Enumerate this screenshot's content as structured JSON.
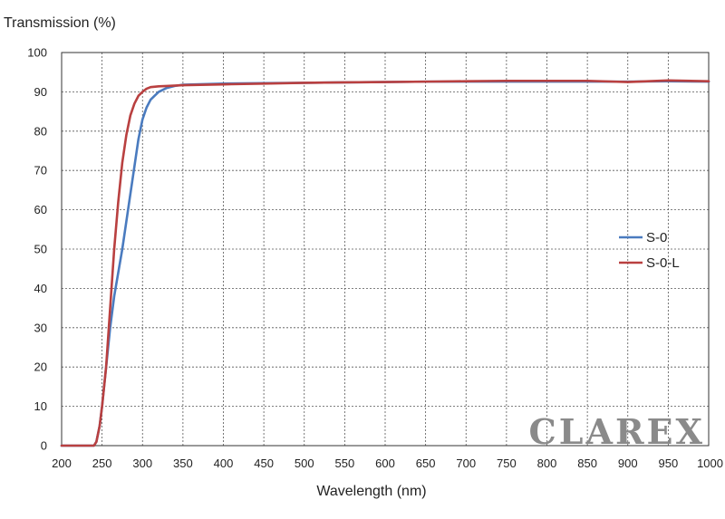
{
  "chart_data": {
    "type": "line",
    "ylabel": "Transmission (%)",
    "xlabel": "Wavelength (nm)",
    "xlim": [
      200,
      1000
    ],
    "ylim": [
      0,
      100
    ],
    "xticks": [
      200,
      250,
      300,
      350,
      400,
      450,
      500,
      550,
      600,
      650,
      700,
      750,
      800,
      850,
      900,
      950,
      1000
    ],
    "yticks": [
      0,
      10,
      20,
      30,
      40,
      50,
      60,
      70,
      80,
      90,
      100
    ],
    "grid": true,
    "legend_position": "right",
    "watermark": "CLAREX",
    "series": [
      {
        "name": "S-0",
        "color": "#4a7bbf",
        "points": [
          [
            200,
            0
          ],
          [
            240,
            0
          ],
          [
            243,
            1
          ],
          [
            247,
            5
          ],
          [
            250,
            10
          ],
          [
            255,
            20
          ],
          [
            260,
            30
          ],
          [
            265,
            38
          ],
          [
            270,
            44
          ],
          [
            275,
            50
          ],
          [
            280,
            57
          ],
          [
            285,
            64
          ],
          [
            290,
            71
          ],
          [
            295,
            78
          ],
          [
            300,
            83
          ],
          [
            305,
            86
          ],
          [
            310,
            88
          ],
          [
            315,
            89
          ],
          [
            320,
            90
          ],
          [
            330,
            91
          ],
          [
            340,
            91.5
          ],
          [
            350,
            91.8
          ],
          [
            400,
            92.1
          ],
          [
            450,
            92.2
          ],
          [
            500,
            92.3
          ],
          [
            550,
            92.4
          ],
          [
            600,
            92.5
          ],
          [
            650,
            92.6
          ],
          [
            700,
            92.6
          ],
          [
            750,
            92.6
          ],
          [
            800,
            92.6
          ],
          [
            850,
            92.6
          ],
          [
            900,
            92.6
          ],
          [
            950,
            92.7
          ],
          [
            1000,
            92.6
          ]
        ]
      },
      {
        "name": "S-0-L",
        "color": "#b94040",
        "points": [
          [
            200,
            0
          ],
          [
            240,
            0
          ],
          [
            243,
            1
          ],
          [
            247,
            5
          ],
          [
            250,
            10
          ],
          [
            255,
            20
          ],
          [
            260,
            35
          ],
          [
            265,
            50
          ],
          [
            270,
            62
          ],
          [
            275,
            72
          ],
          [
            280,
            79
          ],
          [
            285,
            84
          ],
          [
            290,
            87
          ],
          [
            295,
            89
          ],
          [
            300,
            90
          ],
          [
            305,
            90.8
          ],
          [
            310,
            91.2
          ],
          [
            320,
            91.4
          ],
          [
            330,
            91.5
          ],
          [
            350,
            91.7
          ],
          [
            400,
            91.9
          ],
          [
            450,
            92.1
          ],
          [
            500,
            92.3
          ],
          [
            550,
            92.4
          ],
          [
            600,
            92.5
          ],
          [
            650,
            92.6
          ],
          [
            700,
            92.7
          ],
          [
            750,
            92.8
          ],
          [
            800,
            92.8
          ],
          [
            850,
            92.8
          ],
          [
            900,
            92.5
          ],
          [
            950,
            92.9
          ],
          [
            1000,
            92.7
          ]
        ]
      }
    ]
  }
}
